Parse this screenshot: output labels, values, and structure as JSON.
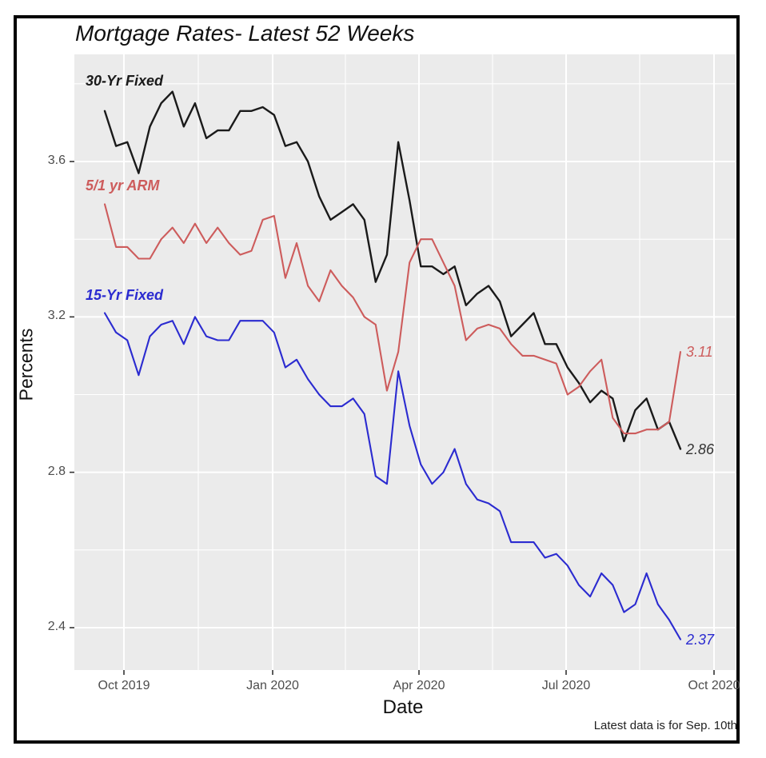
{
  "chart_data": {
    "type": "line",
    "title": "Mortgage Rates- Latest 52 Weeks",
    "xlabel": "Date",
    "ylabel": "Percents",
    "footnote": "Latest data is for Sep. 10th",
    "x_tick_labels": [
      "Oct 2019",
      "Jan 2020",
      "Apr 2020",
      "Jul 2020",
      "Oct 2020"
    ],
    "y_tick_labels": [
      "3.6",
      "3.2",
      "2.8",
      "2.4"
    ],
    "ylim": [
      2.29,
      3.88
    ],
    "x_range": "latest 52 weekly observations, ending Sep. 10 2020",
    "grid": "white major and minor gridlines on light gray panel",
    "legend_position": "direct labels on chart",
    "panel_bg": "#ebebeb",
    "grid_color": "#ffffff",
    "axis_text_color": "#4d4d4d",
    "series": [
      {
        "name": "30-Yr Fixed",
        "color": "#1a1a1a",
        "end_label": "2.86",
        "values": [
          3.73,
          3.64,
          3.65,
          3.57,
          3.69,
          3.75,
          3.78,
          3.69,
          3.75,
          3.66,
          3.68,
          3.68,
          3.73,
          3.73,
          3.74,
          3.72,
          3.64,
          3.65,
          3.6,
          3.51,
          3.45,
          3.47,
          3.49,
          3.45,
          3.29,
          3.36,
          3.65,
          3.5,
          3.33,
          3.33,
          3.31,
          3.33,
          3.23,
          3.26,
          3.28,
          3.24,
          3.15,
          3.18,
          3.21,
          3.13,
          3.13,
          3.07,
          3.03,
          2.98,
          3.01,
          2.99,
          2.88,
          2.96,
          2.99,
          2.91,
          2.93,
          2.86
        ]
      },
      {
        "name": "5/1 yr ARM",
        "color": "#cd5c5c",
        "end_label": "3.11",
        "values": [
          3.49,
          3.38,
          3.38,
          3.35,
          3.35,
          3.4,
          3.43,
          3.39,
          3.44,
          3.39,
          3.43,
          3.39,
          3.36,
          3.37,
          3.45,
          3.46,
          3.3,
          3.39,
          3.28,
          3.24,
          3.32,
          3.28,
          3.25,
          3.2,
          3.18,
          3.01,
          3.11,
          3.34,
          3.4,
          3.4,
          3.34,
          3.28,
          3.14,
          3.17,
          3.18,
          3.17,
          3.13,
          3.1,
          3.1,
          3.09,
          3.08,
          3.0,
          3.02,
          3.06,
          3.09,
          2.94,
          2.9,
          2.9,
          2.91,
          2.91,
          2.93,
          3.11
        ]
      },
      {
        "name": "15-Yr Fixed",
        "color": "#2b2bd0",
        "end_label": "2.37",
        "values": [
          3.21,
          3.16,
          3.14,
          3.05,
          3.15,
          3.18,
          3.19,
          3.13,
          3.2,
          3.15,
          3.14,
          3.14,
          3.19,
          3.19,
          3.19,
          3.16,
          3.07,
          3.09,
          3.04,
          3.0,
          2.97,
          2.97,
          2.99,
          2.95,
          2.79,
          2.77,
          3.06,
          2.92,
          2.82,
          2.77,
          2.8,
          2.86,
          2.77,
          2.73,
          2.72,
          2.7,
          2.62,
          2.62,
          2.62,
          2.58,
          2.59,
          2.56,
          2.51,
          2.48,
          2.54,
          2.51,
          2.44,
          2.46,
          2.54,
          2.46,
          2.42,
          2.37
        ]
      }
    ]
  }
}
